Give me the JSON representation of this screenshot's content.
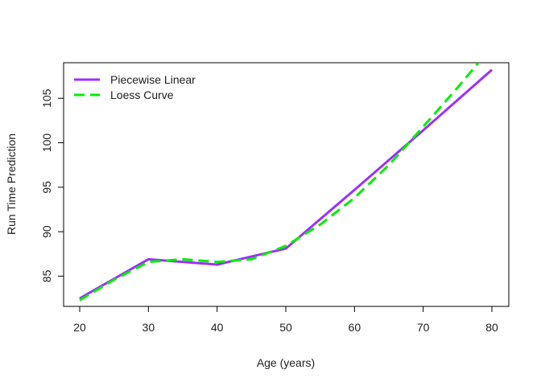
{
  "chart_data": {
    "type": "line",
    "title": "",
    "xlabel": "Age (years)",
    "ylabel": "Run Time Prediction",
    "xlim": [
      20,
      80
    ],
    "ylim": [
      81.6,
      109.0
    ],
    "xticks": [
      20,
      30,
      40,
      50,
      60,
      70,
      80
    ],
    "yticks": [
      85,
      90,
      95,
      100,
      105
    ],
    "grid": false,
    "legend_position": "top-left",
    "series": [
      {
        "name": "Piecewise Linear",
        "color": "#9B30FF",
        "style": "solid",
        "x": [
          20,
          30,
          40,
          50,
          60,
          70,
          80
        ],
        "y": [
          82.5,
          86.9,
          86.3,
          88.1,
          94.7,
          101.4,
          108.2
        ]
      },
      {
        "name": "Loess Curve",
        "color": "#00EE00",
        "style": "dashed",
        "x": [
          20,
          25,
          30,
          35,
          40,
          45,
          50,
          55,
          60,
          65,
          70,
          75,
          80
        ],
        "y": [
          82.3,
          84.6,
          86.6,
          86.9,
          86.6,
          86.9,
          88.4,
          90.8,
          93.8,
          97.5,
          101.8,
          106.2,
          110.8
        ]
      }
    ]
  }
}
